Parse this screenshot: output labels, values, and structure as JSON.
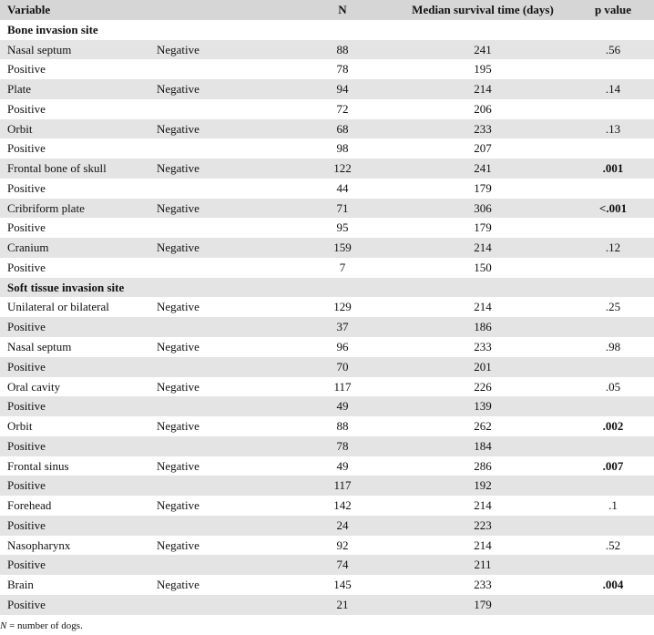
{
  "table": {
    "columns": [
      "Variable",
      "N",
      "Median survival time (days)",
      "p value"
    ],
    "sections": [
      {
        "title": "Bone invasion site",
        "rows": [
          {
            "variable": "Nasal septum",
            "group": "Negative",
            "n": 88,
            "median": 241,
            "p": ".56"
          },
          {
            "variable": "Positive",
            "n": 78,
            "median": 195
          },
          {
            "variable": "Plate",
            "group": "Negative",
            "n": 94,
            "median": 214,
            "p": ".14"
          },
          {
            "variable": "Positive",
            "n": 72,
            "median": 206
          },
          {
            "variable": "Orbit",
            "group": "Negative",
            "n": 68,
            "median": 233,
            "p": ".13"
          },
          {
            "variable": "Positive",
            "n": 98,
            "median": 207
          },
          {
            "variable": "Frontal bone of skull",
            "group": "Negative",
            "n": 122,
            "median": 241,
            "p": ".001",
            "bold": true
          },
          {
            "variable": "Positive",
            "n": 44,
            "median": 179
          },
          {
            "variable": "Cribriform plate",
            "group": "Negative",
            "n": 71,
            "median": 306,
            "p": "<.001",
            "bold": true
          },
          {
            "variable": "Positive",
            "n": 95,
            "median": 179
          },
          {
            "variable": "Cranium",
            "group": "Negative",
            "n": 159,
            "median": 214,
            "p": ".12"
          },
          {
            "variable": "Positive",
            "n": 7,
            "median": 150
          }
        ]
      },
      {
        "title": "Soft tissue invasion site",
        "rows": [
          {
            "variable": "Unilateral or bilateral",
            "group": "Negative",
            "n": 129,
            "median": 214,
            "p": ".25"
          },
          {
            "variable": "Positive",
            "n": 37,
            "median": 186
          },
          {
            "variable": "Nasal septum",
            "group": "Negative",
            "n": 96,
            "median": 233,
            "p": ".98"
          },
          {
            "variable": "Positive",
            "n": 70,
            "median": 201
          },
          {
            "variable": "Oral cavity",
            "group": "Negative",
            "n": 117,
            "median": 226,
            "p": ".05"
          },
          {
            "variable": "Positive",
            "n": 49,
            "median": 139
          },
          {
            "variable": "Orbit",
            "group": "Negative",
            "n": 88,
            "median": 262,
            "p": ".002",
            "bold": true
          },
          {
            "variable": "Positive",
            "n": 78,
            "median": 184
          },
          {
            "variable": "Frontal sinus",
            "group": "Negative",
            "n": 49,
            "median": 286,
            "p": ".007",
            "bold": true
          },
          {
            "variable": "Positive",
            "n": 117,
            "median": 192
          },
          {
            "variable": "Forehead",
            "group": "Negative",
            "n": 142,
            "median": 214,
            "p": ".1"
          },
          {
            "variable": "Positive",
            "n": 24,
            "median": 223
          },
          {
            "variable": "Nasopharynx",
            "group": "Negative",
            "n": 92,
            "median": 214,
            "p": ".52"
          },
          {
            "variable": "Positive",
            "n": 74,
            "median": 211
          },
          {
            "variable": "Brain",
            "group": "Negative",
            "n": 145,
            "median": 233,
            "p": ".004",
            "bold": true
          },
          {
            "variable": "Positive",
            "n": 21,
            "median": 179
          }
        ]
      }
    ]
  },
  "footnote": {
    "symbol": "N",
    "text": " = number of dogs."
  }
}
